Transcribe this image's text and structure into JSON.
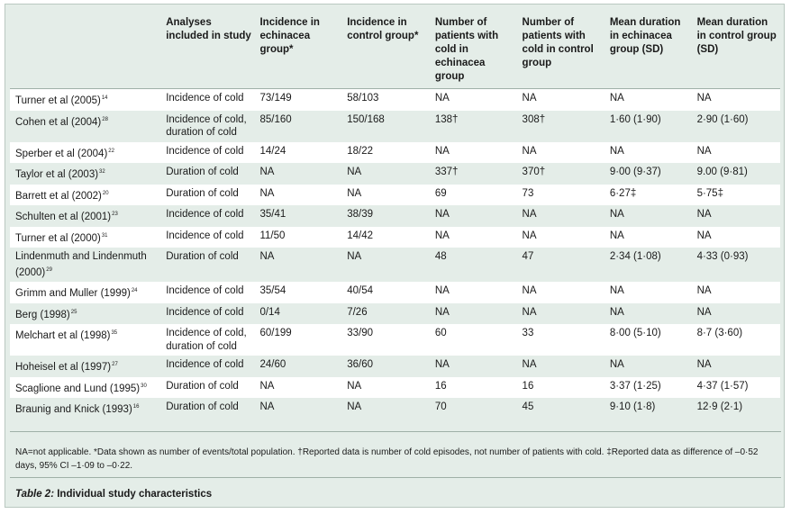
{
  "headers": [
    "",
    "Analyses included in study",
    "Incidence in echinacea group*",
    "Incidence in control group*",
    "Number of patients with cold in echinacea group",
    "Number of patients with cold in control group",
    "Mean duration in echinacea group (SD)",
    "Mean duration in control group (SD)"
  ],
  "rows": [
    {
      "study": "Turner et al (2005)",
      "ref": "14",
      "cells": [
        "Incidence of cold",
        "73/149",
        "58/103",
        "NA",
        "NA",
        "NA",
        "NA"
      ]
    },
    {
      "study": "Cohen et al (2004)",
      "ref": "28",
      "cells": [
        "Incidence of cold, duration of cold",
        "85/160",
        "150/168",
        "138†",
        "308†",
        "1·60 (1·90)",
        "2·90 (1·60)"
      ]
    },
    {
      "study": "Sperber et al (2004)",
      "ref": "22",
      "cells": [
        "Incidence of cold",
        "14/24",
        "18/22",
        "NA",
        "NA",
        "NA",
        "NA"
      ]
    },
    {
      "study": "Taylor et al (2003)",
      "ref": "32",
      "cells": [
        "Duration of cold",
        "NA",
        "NA",
        "337†",
        "370†",
        "9·00 (9·37)",
        "9.00 (9·81)"
      ]
    },
    {
      "study": "Barrett et al (2002)",
      "ref": "20",
      "cells": [
        "Duration of cold",
        "NA",
        "NA",
        "69",
        "73",
        "6·27‡",
        "5·75‡"
      ]
    },
    {
      "study": "Schulten et al (2001)",
      "ref": "23",
      "cells": [
        "Incidence of cold",
        "35/41",
        "38/39",
        "NA",
        "NA",
        "NA",
        "NA"
      ]
    },
    {
      "study": "Turner et al (2000)",
      "ref": "31",
      "cells": [
        "Incidence of cold",
        "11/50",
        "14/42",
        "NA",
        "NA",
        "NA",
        "NA"
      ]
    },
    {
      "study": "Lindenmuth and Lindenmuth (2000)",
      "ref": "29",
      "cells": [
        "Duration of cold",
        "NA",
        "NA",
        "48",
        "47",
        "2·34 (1·08)",
        "4·33 (0·93)"
      ]
    },
    {
      "study": "Grimm and Muller (1999)",
      "ref": "24",
      "cells": [
        "Incidence of cold",
        "35/54",
        "40/54",
        "NA",
        "NA",
        "NA",
        "NA"
      ]
    },
    {
      "study": "Berg (1998)",
      "ref": "25",
      "cells": [
        "Incidence of cold",
        "0/14",
        "7/26",
        "NA",
        "NA",
        "NA",
        "NA"
      ]
    },
    {
      "study": "Melchart et al (1998)",
      "ref": "35",
      "cells": [
        "Incidence of cold, duration of cold",
        "60/199",
        "33/90",
        "60",
        "33",
        "8·00 (5·10)",
        "8·7 (3·60)"
      ]
    },
    {
      "study": "Hoheisel et al (1997)",
      "ref": "27",
      "cells": [
        "Incidence of cold",
        "24/60",
        "36/60",
        "NA",
        "NA",
        "NA",
        "NA"
      ]
    },
    {
      "study": "Scaglione and Lund (1995)",
      "ref": "30",
      "cells": [
        "Duration of cold",
        "NA",
        "NA",
        "16",
        "16",
        "3·37 (1·25)",
        "4·37 (1·57)"
      ]
    },
    {
      "study": "Braunig and Knick (1993)",
      "ref": "16",
      "cells": [
        "Duration of cold",
        "NA",
        "NA",
        "70",
        "45",
        "9·10 (1·8)",
        "12·9 (2·1)"
      ]
    }
  ],
  "footnote": "NA=not applicable. *Data shown as number of events/total population. †Reported data is number of cold episodes, not number of patients with cold. ‡Reported data as difference of –0·52 days, 95% CI –1·09 to –0·22.",
  "caption": {
    "label": "Table 2:",
    "text": " Individual study characteristics"
  }
}
